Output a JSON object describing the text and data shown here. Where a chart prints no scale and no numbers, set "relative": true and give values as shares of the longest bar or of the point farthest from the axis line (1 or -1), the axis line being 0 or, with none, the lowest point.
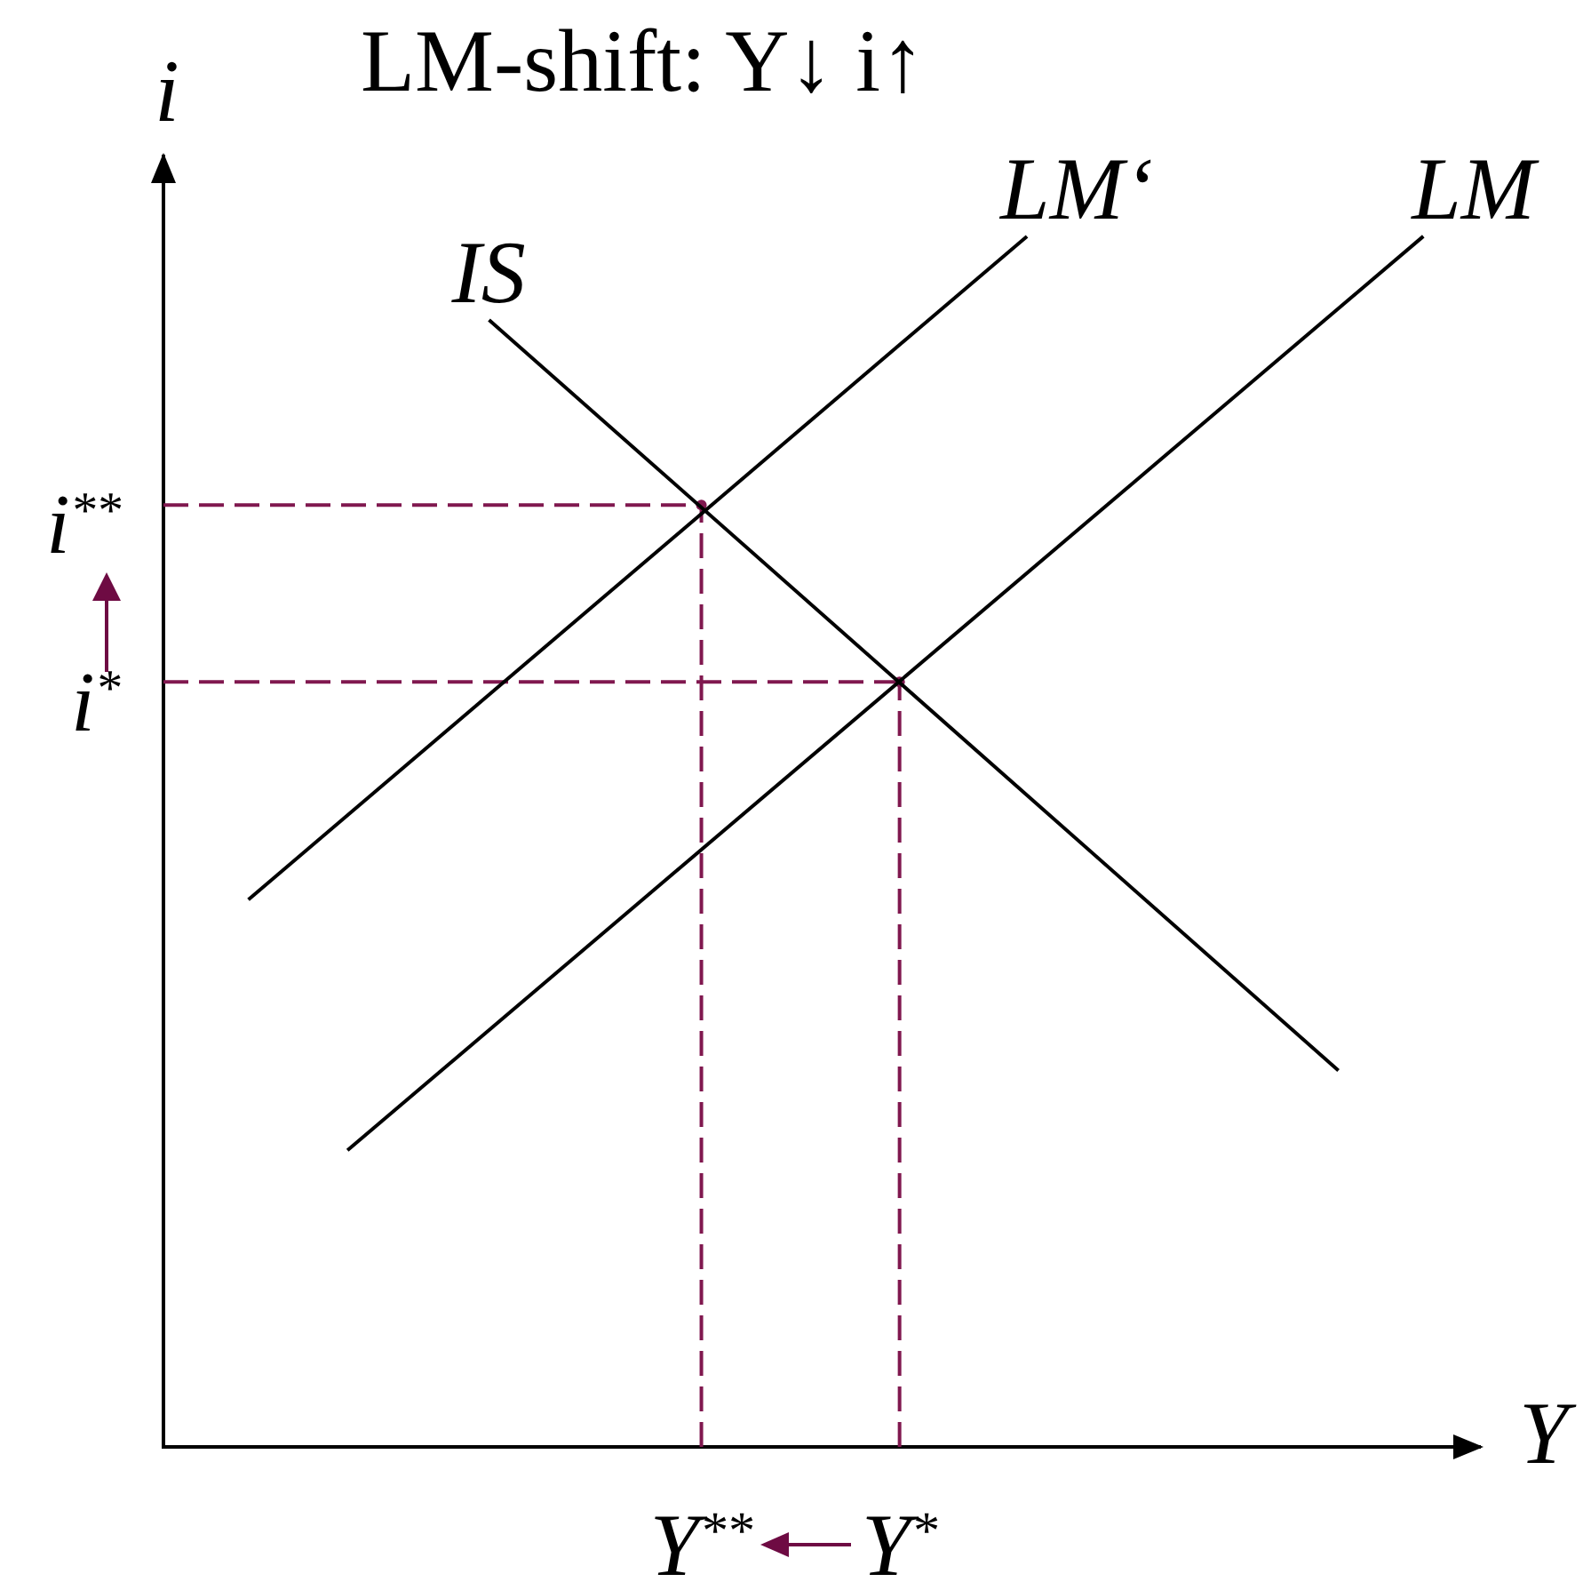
{
  "chart_data": {
    "type": "line",
    "title": "LM-shift: Y↓ i↑",
    "xlabel": "Y",
    "ylabel": "i",
    "relative": true,
    "line_style": "solid",
    "marker": "none",
    "grid": false,
    "legend": false,
    "categories": [
      null,
      null,
      null,
      null,
      null,
      null,
      null,
      null,
      null,
      null,
      null,
      null,
      null,
      null,
      null,
      null,
      null,
      null,
      null,
      null,
      null,
      null,
      null,
      null,
      null,
      null,
      null,
      null,
      null,
      null,
      null,
      null,
      null,
      null,
      null,
      null,
      null,
      null,
      "Y$^{**}$",
      null,
      null,
      null,
      null,
      null,
      null,
      null,
      null,
      null,
      null,
      null,
      null,
      null,
      "Y$^{*}$",
      null,
      null,
      null,
      null,
      null,
      null,
      null,
      null,
      null,
      null,
      null,
      null,
      null,
      null,
      null,
      null,
      null,
      null,
      null,
      null,
      null,
      null,
      null,
      null,
      null,
      null,
      null,
      null,
      null,
      null,
      null,
      null,
      null,
      null,
      null,
      null,
      null,
      null,
      null,
      null,
      null
    ],
    "series": [
      {
        "name": "IS",
        "color": "#000000",
        "values": [
          null,
          null,
          null,
          null,
          null,
          null,
          null,
          null,
          null,
          null,
          null,
          null,
          null,
          null,
          null,
          null,
          null,
          null,
          null,
          null,
          null,
          null,
          null,
          0.931,
          null,
          null,
          null,
          null,
          null,
          null,
          null,
          null,
          null,
          null,
          null,
          null,
          null,
          null,
          null,
          null,
          null,
          null,
          null,
          null,
          null,
          null,
          null,
          null,
          null,
          null,
          null,
          null,
          null,
          null,
          null,
          null,
          null,
          null,
          null,
          null,
          null,
          null,
          null,
          null,
          null,
          null,
          null,
          null,
          null,
          null,
          null,
          null,
          null,
          null,
          null,
          null,
          null,
          null,
          null,
          null,
          null,
          null,
          null,
          0.311,
          null,
          null,
          null,
          null,
          null,
          null,
          null,
          null,
          null,
          null
        ]
      },
      {
        "name": "LM‘",
        "color": "#000000",
        "values": [
          null,
          null,
          null,
          null,
          null,
          null,
          0.452,
          null,
          null,
          null,
          null,
          null,
          null,
          null,
          null,
          null,
          null,
          null,
          null,
          null,
          null,
          null,
          null,
          null,
          null,
          null,
          null,
          null,
          null,
          null,
          null,
          null,
          null,
          null,
          null,
          null,
          null,
          null,
          null,
          null,
          null,
          null,
          null,
          null,
          null,
          null,
          null,
          null,
          null,
          null,
          null,
          null,
          null,
          null,
          null,
          null,
          null,
          null,
          null,
          null,
          null,
          1,
          null,
          null,
          null,
          null,
          null,
          null,
          null,
          null,
          null,
          null,
          null,
          null,
          null,
          null,
          null,
          null,
          null,
          null,
          null,
          null,
          null,
          null,
          null,
          null,
          null,
          null,
          null,
          null,
          null,
          null,
          null,
          null
        ]
      },
      {
        "name": "LM",
        "color": "#000000",
        "values": [
          null,
          null,
          null,
          null,
          null,
          null,
          null,
          null,
          null,
          null,
          null,
          null,
          null,
          0.245,
          null,
          null,
          null,
          null,
          null,
          null,
          null,
          null,
          null,
          null,
          null,
          null,
          null,
          null,
          null,
          null,
          null,
          null,
          null,
          null,
          null,
          null,
          null,
          null,
          null,
          null,
          null,
          null,
          null,
          null,
          null,
          null,
          null,
          null,
          null,
          null,
          null,
          null,
          null,
          null,
          null,
          null,
          null,
          null,
          null,
          null,
          null,
          null,
          null,
          null,
          null,
          null,
          null,
          null,
          null,
          null,
          null,
          null,
          null,
          null,
          null,
          null,
          null,
          null,
          null,
          null,
          null,
          null,
          null,
          null,
          null,
          null,
          null,
          null,
          null,
          1,
          null,
          null,
          null,
          null
        ]
      },
      {
        "color": "#80184f",
        "line_style": "dashed",
        "values": [
          0.778,
          null,
          null,
          null,
          null,
          null,
          null,
          null,
          null,
          null,
          null,
          null,
          null,
          null,
          null,
          null,
          null,
          null,
          null,
          null,
          null,
          null,
          null,
          null,
          null,
          null,
          null,
          null,
          null,
          null,
          null,
          null,
          null,
          null,
          null,
          null,
          null,
          null,
          0.778,
          null,
          null,
          null,
          null,
          null,
          null,
          null,
          null,
          null,
          null,
          null,
          null,
          null,
          null,
          null,
          null,
          null,
          null,
          null,
          null,
          null,
          null,
          null,
          null,
          null,
          null,
          null,
          null,
          null,
          null,
          null,
          null,
          null,
          null,
          null,
          null,
          null,
          null,
          null,
          null,
          null,
          null,
          null,
          null,
          null,
          null,
          null,
          null,
          null,
          null,
          null,
          null,
          null,
          null,
          null
        ]
      },
      {
        "color": "#80184f",
        "line_style": "dashed",
        "values": [
          0.632,
          null,
          null,
          null,
          null,
          null,
          null,
          null,
          null,
          null,
          null,
          null,
          null,
          null,
          null,
          null,
          null,
          null,
          null,
          null,
          null,
          null,
          null,
          null,
          null,
          null,
          null,
          null,
          null,
          null,
          null,
          null,
          null,
          null,
          null,
          null,
          null,
          null,
          null,
          null,
          null,
          null,
          null,
          null,
          null,
          null,
          null,
          null,
          null,
          null,
          null,
          null,
          0.632,
          null,
          null,
          null,
          null,
          null,
          null,
          null,
          null,
          null,
          null,
          null,
          null,
          null,
          null,
          null,
          null,
          null,
          null,
          null,
          null,
          null,
          null,
          null,
          null,
          null,
          null,
          null,
          null,
          null,
          null,
          null,
          null,
          null,
          null,
          null,
          null,
          null,
          null,
          null,
          null,
          null
        ]
      },
      {
        "type": "lollipop",
        "color": "#80184f",
        "line_style": "dashed",
        "marker": "circle",
        "values": [
          null,
          null,
          null,
          null,
          null,
          null,
          null,
          null,
          null,
          null,
          null,
          null,
          null,
          null,
          null,
          null,
          null,
          null,
          null,
          null,
          null,
          null,
          null,
          null,
          null,
          null,
          null,
          null,
          null,
          null,
          null,
          null,
          null,
          null,
          null,
          null,
          null,
          null,
          0.778,
          null,
          null,
          null,
          null,
          null,
          null,
          null,
          null,
          null,
          null,
          null,
          null,
          null,
          0.632,
          null,
          null,
          null,
          null,
          null,
          null,
          null,
          null,
          null,
          null,
          null,
          null,
          null,
          null,
          null,
          null,
          null,
          null,
          null,
          null,
          null,
          null,
          null,
          null,
          null,
          null,
          null,
          null,
          null,
          null,
          null,
          null,
          null,
          null,
          null,
          null,
          null,
          null,
          null,
          null,
          null
        ]
      }
    ],
    "annotations": [
      "i$^{**}$",
      "i$^{*}$"
    ]
  }
}
